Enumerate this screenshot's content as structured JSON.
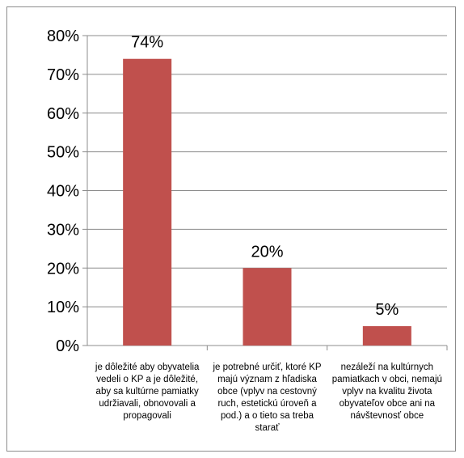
{
  "chart_data": {
    "type": "bar",
    "categories": [
      "je dôležité aby obyvatelia vedeli o KP a je dôležité, aby sa kultúrne pamiatky udržiavali, obnovovali a propagovali",
      "je potrebné určiť, ktoré KP majú význam z hľadiska obce (vplyv na cestovný ruch, estetickú úroveň a pod.) a o tieto sa treba starať",
      "nezáleží na kultúrnych pamiatkach v obci, nemajú vplyv na kvalitu života obyvateľov obce ani na návštevnosť obce"
    ],
    "values": [
      74,
      20,
      5
    ],
    "data_labels": [
      "74%",
      "20%",
      "5%"
    ],
    "ylim": [
      0,
      80
    ],
    "ytick_values": [
      0,
      10,
      20,
      30,
      40,
      50,
      60,
      70,
      80
    ],
    "ytick_labels": [
      "0%",
      "10%",
      "20%",
      "30%",
      "40%",
      "50%",
      "60%",
      "70%",
      "80%"
    ],
    "title": "",
    "xlabel": "",
    "ylabel": "",
    "grid": true,
    "legend": "none",
    "bar_color": "#c0504d",
    "grid_color": "#8c8c8c"
  }
}
